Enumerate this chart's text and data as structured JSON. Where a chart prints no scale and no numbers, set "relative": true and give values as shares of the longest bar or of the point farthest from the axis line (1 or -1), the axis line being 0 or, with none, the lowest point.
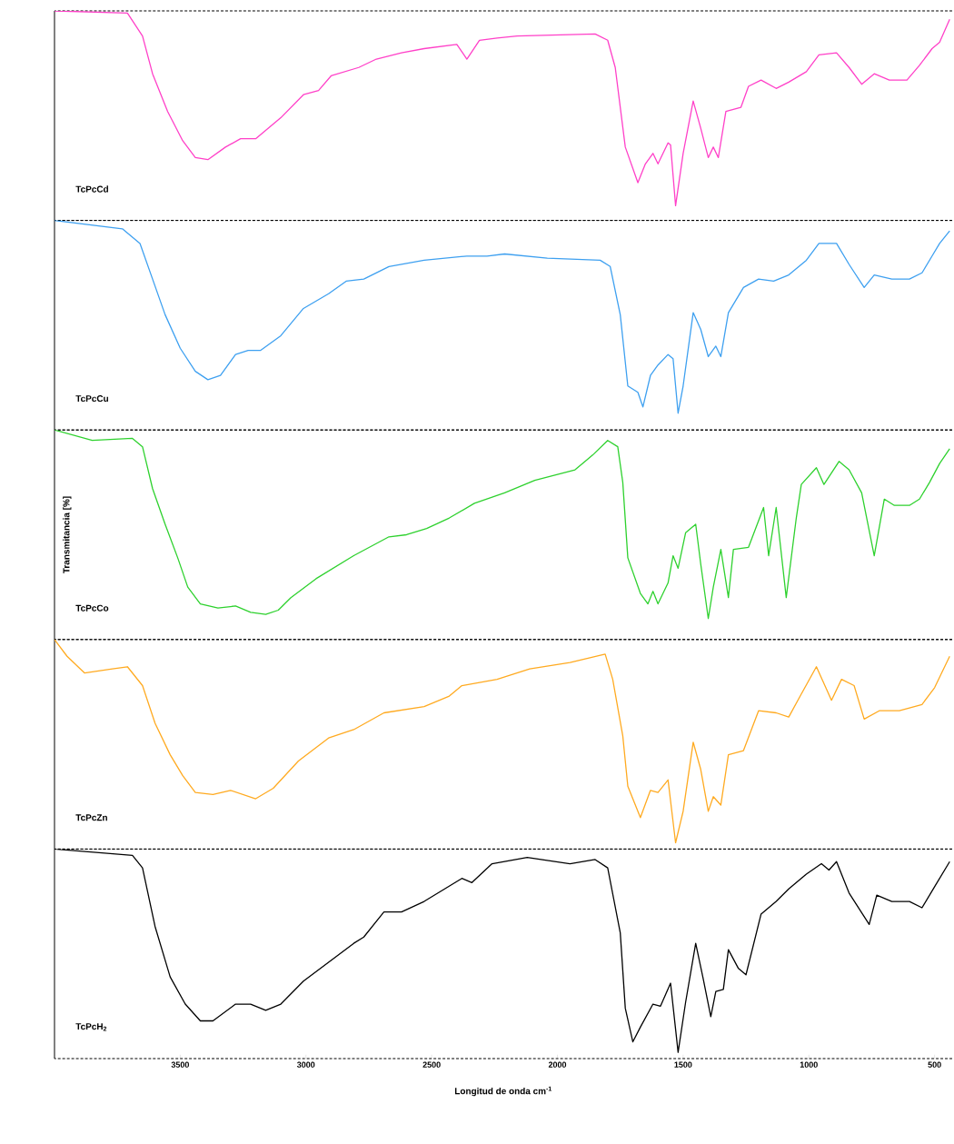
{
  "chart_data": [
    {
      "type": "line",
      "relative": true,
      "xlim": [
        4000,
        430
      ],
      "tick_labels": false,
      "x": [
        4000,
        3710,
        3650,
        3610,
        3550,
        3490,
        3440,
        3390,
        3320,
        3260,
        3200,
        3100,
        3010,
        2950,
        2900,
        2790,
        2720,
        2620,
        2530,
        2400,
        2360,
        2310,
        2240,
        2160,
        1850,
        1800,
        1770,
        1730,
        1680,
        1650,
        1620,
        1600,
        1560,
        1550,
        1530,
        1500,
        1460,
        1430,
        1400,
        1380,
        1360,
        1330,
        1270,
        1240,
        1190,
        1130,
        1080,
        1010,
        960,
        890,
        840,
        790,
        740,
        680,
        610,
        560,
        510,
        480,
        440
      ],
      "series": [
        {
          "name": "TcPcCd",
          "color": "#ff40c8",
          "values": [
            1.0,
            0.99,
            0.88,
            0.7,
            0.52,
            0.38,
            0.3,
            0.29,
            0.35,
            0.39,
            0.39,
            0.49,
            0.6,
            0.62,
            0.69,
            0.73,
            0.77,
            0.8,
            0.82,
            0.84,
            0.77,
            0.86,
            0.87,
            0.88,
            0.89,
            0.86,
            0.73,
            0.35,
            0.18,
            0.27,
            0.32,
            0.27,
            0.37,
            0.36,
            0.07,
            0.32,
            0.57,
            0.44,
            0.3,
            0.35,
            0.3,
            0.52,
            0.54,
            0.64,
            0.67,
            0.63,
            0.66,
            0.71,
            0.79,
            0.8,
            0.73,
            0.65,
            0.7,
            0.67,
            0.67,
            0.74,
            0.82,
            0.85,
            0.96
          ]
        }
      ]
    },
    {
      "type": "line",
      "relative": true,
      "xlim": [
        4000,
        430
      ],
      "tick_labels": false,
      "x": [
        4000,
        3730,
        3660,
        3610,
        3560,
        3500,
        3440,
        3390,
        3340,
        3280,
        3230,
        3180,
        3100,
        3010,
        2910,
        2840,
        2770,
        2670,
        2530,
        2360,
        2280,
        2210,
        2040,
        1830,
        1790,
        1750,
        1720,
        1680,
        1660,
        1630,
        1600,
        1560,
        1540,
        1520,
        1500,
        1460,
        1430,
        1400,
        1370,
        1350,
        1320,
        1260,
        1200,
        1140,
        1080,
        1010,
        960,
        890,
        840,
        780,
        740,
        670,
        600,
        550,
        510,
        480,
        440
      ],
      "series": [
        {
          "name": "TcPcCu",
          "color": "#3ea0f0",
          "values": [
            1.0,
            0.96,
            0.89,
            0.72,
            0.55,
            0.39,
            0.28,
            0.24,
            0.26,
            0.36,
            0.38,
            0.38,
            0.45,
            0.58,
            0.65,
            0.71,
            0.72,
            0.78,
            0.81,
            0.83,
            0.83,
            0.84,
            0.82,
            0.81,
            0.78,
            0.55,
            0.21,
            0.18,
            0.11,
            0.26,
            0.31,
            0.36,
            0.34,
            0.08,
            0.21,
            0.56,
            0.48,
            0.35,
            0.4,
            0.35,
            0.56,
            0.68,
            0.72,
            0.71,
            0.74,
            0.81,
            0.89,
            0.89,
            0.79,
            0.68,
            0.74,
            0.72,
            0.72,
            0.75,
            0.83,
            0.89,
            0.95
          ]
        }
      ]
    },
    {
      "type": "line",
      "relative": true,
      "xlim": [
        4000,
        430
      ],
      "tick_labels": false,
      "ylabel": "Transmitancia  [%]",
      "x": [
        4000,
        3850,
        3690,
        3650,
        3610,
        3560,
        3510,
        3470,
        3420,
        3350,
        3280,
        3220,
        3160,
        3110,
        3060,
        2960,
        2810,
        2670,
        2600,
        2520,
        2430,
        2330,
        2210,
        2090,
        1930,
        1860,
        1800,
        1760,
        1740,
        1720,
        1670,
        1640,
        1620,
        1600,
        1560,
        1540,
        1520,
        1490,
        1450,
        1430,
        1400,
        1380,
        1350,
        1320,
        1300,
        1240,
        1180,
        1160,
        1130,
        1090,
        1050,
        1030,
        970,
        940,
        880,
        840,
        790,
        740,
        700,
        660,
        600,
        560,
        520,
        480,
        440
      ],
      "series": [
        {
          "name": "TcPcCo",
          "color": "#2ed12e",
          "values": [
            1.0,
            0.95,
            0.96,
            0.92,
            0.72,
            0.55,
            0.39,
            0.25,
            0.17,
            0.15,
            0.16,
            0.13,
            0.12,
            0.14,
            0.2,
            0.29,
            0.4,
            0.49,
            0.5,
            0.53,
            0.58,
            0.65,
            0.7,
            0.76,
            0.81,
            0.88,
            0.95,
            0.92,
            0.75,
            0.39,
            0.22,
            0.17,
            0.23,
            0.17,
            0.27,
            0.4,
            0.34,
            0.51,
            0.55,
            0.36,
            0.1,
            0.25,
            0.43,
            0.2,
            0.43,
            0.44,
            0.63,
            0.4,
            0.63,
            0.2,
            0.58,
            0.74,
            0.82,
            0.74,
            0.85,
            0.81,
            0.7,
            0.4,
            0.67,
            0.64,
            0.64,
            0.67,
            0.75,
            0.84,
            0.91
          ]
        }
      ]
    },
    {
      "type": "line",
      "relative": true,
      "xlim": [
        4000,
        430
      ],
      "tick_labels": false,
      "x": [
        4000,
        3950,
        3880,
        3770,
        3710,
        3650,
        3600,
        3540,
        3490,
        3440,
        3370,
        3300,
        3200,
        3130,
        3030,
        2910,
        2810,
        2690,
        2530,
        2430,
        2380,
        2240,
        2110,
        1950,
        1810,
        1780,
        1740,
        1720,
        1670,
        1630,
        1600,
        1560,
        1530,
        1500,
        1460,
        1430,
        1400,
        1380,
        1350,
        1320,
        1260,
        1200,
        1130,
        1080,
        1030,
        970,
        910,
        870,
        820,
        780,
        720,
        640,
        550,
        500,
        440
      ],
      "series": [
        {
          "name": "TcPcZn",
          "color": "#ffaa20",
          "values": [
            1.0,
            0.92,
            0.84,
            0.86,
            0.87,
            0.78,
            0.6,
            0.45,
            0.35,
            0.27,
            0.26,
            0.28,
            0.24,
            0.29,
            0.42,
            0.53,
            0.57,
            0.65,
            0.68,
            0.73,
            0.78,
            0.81,
            0.86,
            0.89,
            0.93,
            0.81,
            0.54,
            0.3,
            0.15,
            0.28,
            0.27,
            0.33,
            0.03,
            0.18,
            0.51,
            0.38,
            0.18,
            0.25,
            0.21,
            0.45,
            0.47,
            0.66,
            0.65,
            0.63,
            0.74,
            0.87,
            0.71,
            0.81,
            0.78,
            0.62,
            0.66,
            0.66,
            0.69,
            0.77,
            0.92
          ]
        }
      ]
    },
    {
      "type": "line",
      "relative": true,
      "xlim": [
        4000,
        430
      ],
      "tick_labels": "x",
      "xlabel": "Longitud de onda cm$^{-1}$",
      "xticks": [
        3500,
        3000,
        2500,
        2000,
        1500,
        1000,
        500
      ],
      "x": [
        4000,
        3690,
        3650,
        3600,
        3540,
        3480,
        3420,
        3370,
        3280,
        3220,
        3160,
        3100,
        3010,
        2910,
        2810,
        2770,
        2690,
        2620,
        2530,
        2380,
        2340,
        2260,
        2120,
        1950,
        1850,
        1800,
        1750,
        1730,
        1700,
        1670,
        1620,
        1590,
        1550,
        1520,
        1490,
        1450,
        1420,
        1390,
        1370,
        1340,
        1320,
        1280,
        1250,
        1190,
        1130,
        1080,
        1010,
        950,
        920,
        890,
        840,
        760,
        730,
        670,
        600,
        550,
        500,
        440
      ],
      "series": [
        {
          "name": "TcPcH$_{2}$",
          "color": "#000000",
          "values": [
            1.0,
            0.97,
            0.91,
            0.63,
            0.39,
            0.26,
            0.18,
            0.18,
            0.26,
            0.26,
            0.23,
            0.26,
            0.37,
            0.46,
            0.55,
            0.58,
            0.7,
            0.7,
            0.75,
            0.86,
            0.84,
            0.93,
            0.96,
            0.93,
            0.95,
            0.91,
            0.6,
            0.24,
            0.08,
            0.15,
            0.26,
            0.25,
            0.36,
            0.03,
            0.27,
            0.55,
            0.38,
            0.2,
            0.32,
            0.33,
            0.52,
            0.43,
            0.4,
            0.69,
            0.75,
            0.81,
            0.88,
            0.93,
            0.9,
            0.94,
            0.79,
            0.64,
            0.78,
            0.75,
            0.75,
            0.72,
            0.82,
            0.94
          ]
        }
      ]
    }
  ]
}
